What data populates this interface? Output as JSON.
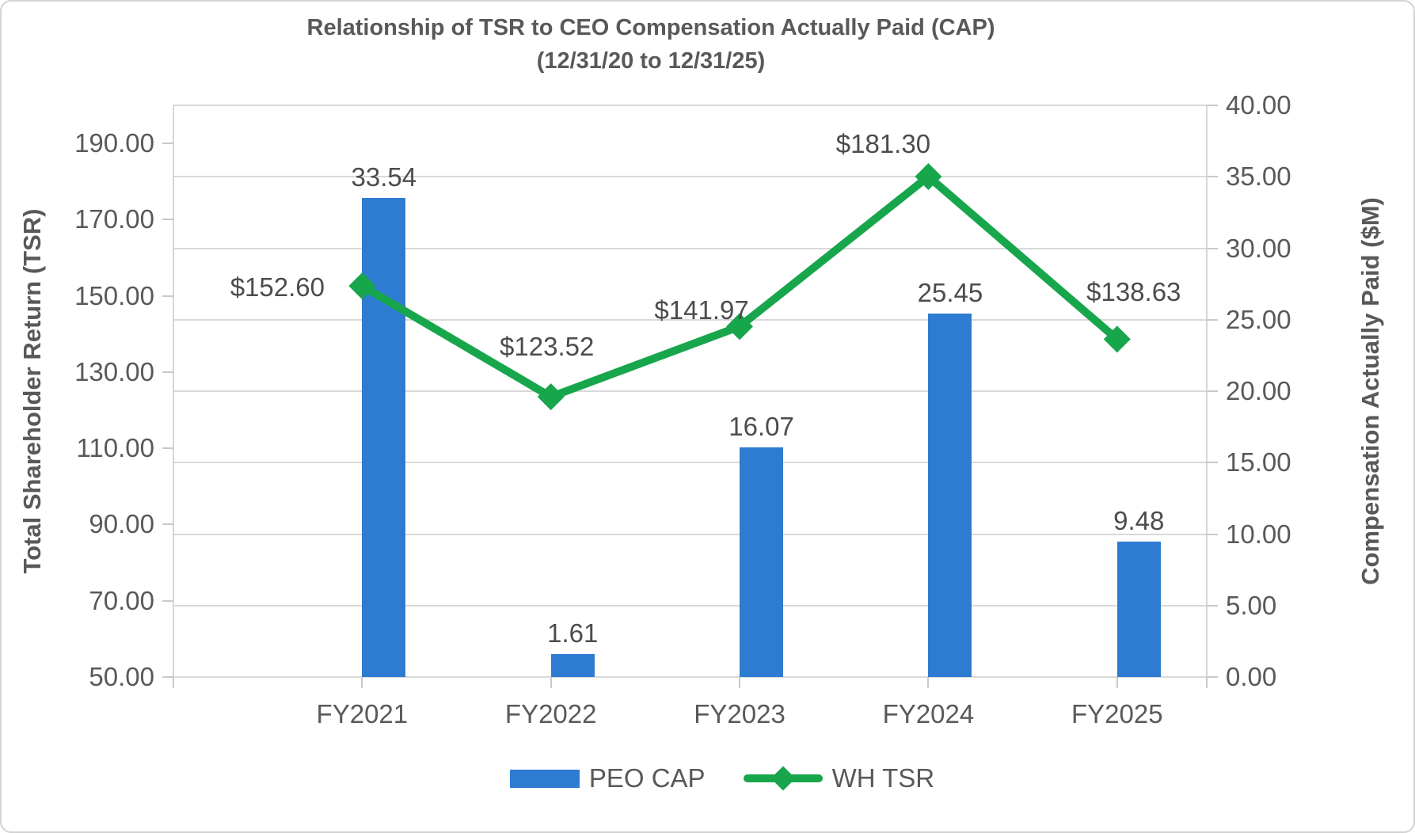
{
  "chart": {
    "title": "Relationship of TSR to CEO Compensation Actually Paid (CAP)",
    "subtitle": "(12/31/20 to 12/31/25)"
  },
  "chart_data": {
    "type": "combo-bar-line",
    "title": "Relationship of TSR to CEO Compensation Actually Paid (CAP)",
    "subtitle": "(12/31/20 to 12/31/25)",
    "categories": [
      "FY2021",
      "FY2022",
      "FY2023",
      "FY2024",
      "FY2025"
    ],
    "series": [
      {
        "name": "PEO CAP",
        "type": "bar",
        "axis": "right",
        "color": "#2e7cd1",
        "values": [
          33.54,
          1.61,
          16.07,
          25.45,
          9.48
        ],
        "labels": [
          "33.54",
          "1.61",
          "16.07",
          "25.45",
          "9.48"
        ]
      },
      {
        "name": "WH TSR",
        "type": "line",
        "axis": "left",
        "color": "#17a64b",
        "marker": "diamond",
        "values": [
          152.6,
          123.52,
          141.97,
          181.3,
          138.63
        ],
        "labels": [
          "$152.60",
          "$123.52",
          "$141.97",
          "$181.30",
          "$138.63"
        ]
      }
    ],
    "left_axis": {
      "title": "Total Shareholder Return (TSR)",
      "min": 50,
      "max": 200,
      "tick_step": 20,
      "tick_labels": [
        "190.00",
        "170.00",
        "150.00",
        "130.00",
        "110.00",
        "90.00",
        "70.00",
        "50.00"
      ]
    },
    "right_axis": {
      "title": "Compensation Actually Paid ($M)",
      "min": 0,
      "max": 40,
      "tick_step": 5,
      "tick_labels": [
        "40.00",
        "35.00",
        "30.00",
        "25.00",
        "20.00",
        "15.00",
        "10.00",
        "5.00",
        "0.00"
      ]
    },
    "grid": "horizontal",
    "legend_position": "bottom",
    "colors": {
      "bar": "#2e7cd1",
      "line": "#17a64b",
      "gridline": "#d9d9d9",
      "text": "#595959"
    }
  }
}
